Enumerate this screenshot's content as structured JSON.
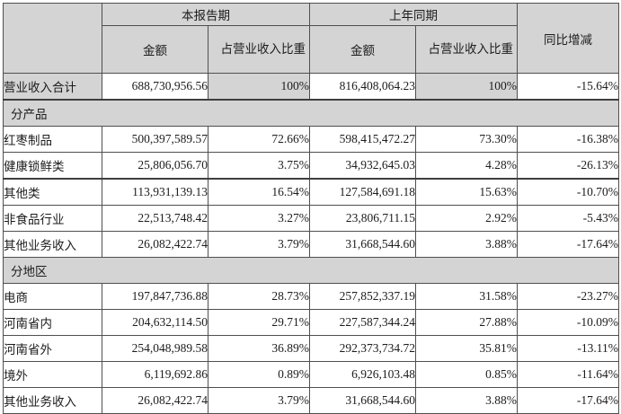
{
  "header": {
    "corner": "",
    "current_period": "本报告期",
    "prior_period": "上年同期",
    "amount": "金额",
    "revenue_ratio": "占营业收入比重",
    "yoy_change": "同比增减"
  },
  "total_row": {
    "label": "营业收入合计",
    "current_amount": "688,730,956.56",
    "current_ratio": "100%",
    "prior_amount": "816,408,064.23",
    "prior_ratio": "100%",
    "yoy": "-15.64%"
  },
  "sections": [
    {
      "title": "分产品",
      "rows": [
        {
          "label": "红枣制品",
          "current_amount": "500,397,589.57",
          "current_ratio": "72.66%",
          "prior_amount": "598,415,472.27",
          "prior_ratio": "73.30%",
          "yoy": "-16.38%"
        },
        {
          "label": "健康锁鲜类",
          "current_amount": "25,806,056.70",
          "current_ratio": "3.75%",
          "prior_amount": "34,932,645.03",
          "prior_ratio": "4.28%",
          "yoy": "-26.13%"
        },
        {
          "label": "其他类",
          "current_amount": "113,931,139.13",
          "current_ratio": "16.54%",
          "prior_amount": "127,584,691.18",
          "prior_ratio": "15.63%",
          "yoy": "-10.70%"
        },
        {
          "label": "非食品行业",
          "current_amount": "22,513,748.42",
          "current_ratio": "3.27%",
          "prior_amount": "23,806,711.15",
          "prior_ratio": "2.92%",
          "yoy": "-5.43%"
        },
        {
          "label": "其他业务收入",
          "current_amount": "26,082,422.74",
          "current_ratio": "3.79%",
          "prior_amount": "31,668,544.60",
          "prior_ratio": "3.88%",
          "yoy": "-17.64%"
        }
      ]
    },
    {
      "title": "分地区",
      "rows": [
        {
          "label": "电商",
          "current_amount": "197,847,736.88",
          "current_ratio": "28.73%",
          "prior_amount": "257,852,337.19",
          "prior_ratio": "31.58%",
          "yoy": "-23.27%"
        },
        {
          "label": "河南省内",
          "current_amount": "204,632,114.50",
          "current_ratio": "29.71%",
          "prior_amount": "227,587,344.24",
          "prior_ratio": "27.88%",
          "yoy": "-10.09%"
        },
        {
          "label": "河南省外",
          "current_amount": "254,048,989.58",
          "current_ratio": "36.89%",
          "prior_amount": "292,373,734.72",
          "prior_ratio": "35.81%",
          "yoy": "-13.11%"
        },
        {
          "label": "境外",
          "current_amount": "6,119,692.86",
          "current_ratio": "0.89%",
          "prior_amount": "6,926,103.48",
          "prior_ratio": "0.85%",
          "yoy": "-11.64%"
        },
        {
          "label": "其他业务收入",
          "current_amount": "26,082,422.74",
          "current_ratio": "3.79%",
          "prior_amount": "31,668,544.60",
          "prior_ratio": "3.88%",
          "yoy": "-17.64%"
        }
      ]
    }
  ],
  "colors": {
    "header_bg": "#d4d4d4",
    "grid_border": "#4f4f4f",
    "thick_border": "#3e3e3e",
    "text": "#1c1c1c"
  }
}
